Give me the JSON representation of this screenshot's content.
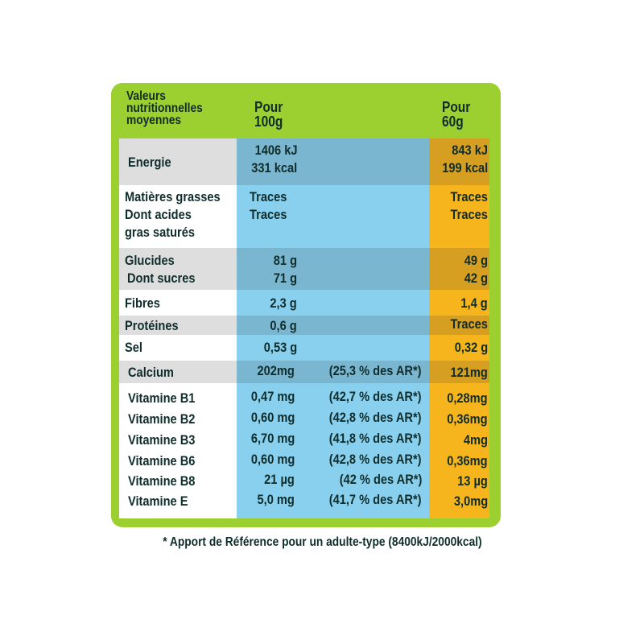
{
  "header": {
    "label_lines": [
      "Valeurs",
      "nutritionnelles",
      "moyennes"
    ],
    "col100_lines": [
      "Pour",
      "100g"
    ],
    "col60_lines": [
      "Pour",
      "60g"
    ]
  },
  "rows": [
    {
      "label": [
        "Energie"
      ],
      "v100": [
        "1406 kJ",
        "331 kcal"
      ],
      "v60": [
        "843 kJ",
        "199 kcal"
      ],
      "pct": ""
    },
    {
      "label": [
        "Matières grasses",
        "Dont acides",
        "gras saturés"
      ],
      "v100": [
        "Traces",
        "Traces"
      ],
      "v60": [
        "Traces",
        "Traces"
      ],
      "pct": ""
    },
    {
      "label": [
        "Glucides",
        "Dont sucres"
      ],
      "v100": [
        "81 g",
        "71 g"
      ],
      "v60": [
        "49 g",
        "42 g"
      ],
      "pct": ""
    },
    {
      "label": [
        "Fibres"
      ],
      "v100": [
        "2,3 g"
      ],
      "v60": [
        "1,4 g"
      ],
      "pct": ""
    },
    {
      "label": [
        "Protéines"
      ],
      "v100": [
        "0,6 g"
      ],
      "v60": [
        "Traces"
      ],
      "pct": ""
    },
    {
      "label": [
        "Sel"
      ],
      "v100": [
        "0,53 g"
      ],
      "v60": [
        "0,32 g"
      ],
      "pct": ""
    },
    {
      "label": [
        "Calcium"
      ],
      "v100": [
        "202mg"
      ],
      "v60": [
        "121mg"
      ],
      "pct": "(25,3 % des AR*)"
    },
    {
      "label": [
        "Vitamine B1"
      ],
      "v100": [
        "0,47 mg"
      ],
      "v60": [
        "0,28mg"
      ],
      "pct": "(42,7 % des AR*)"
    },
    {
      "label": [
        "Vitamine B2"
      ],
      "v100": [
        "0,60 mg"
      ],
      "v60": [
        "0,36mg"
      ],
      "pct": "(42,8 % des AR*)"
    },
    {
      "label": [
        "Vitamine B3"
      ],
      "v100": [
        "6,70 mg"
      ],
      "v60": [
        "4mg"
      ],
      "pct": "(41,8 % des AR*)"
    },
    {
      "label": [
        "Vitamine B6"
      ],
      "v100": [
        "0,60 mg"
      ],
      "v60": [
        "0,36mg"
      ],
      "pct": "(42,8 % des AR*)"
    },
    {
      "label": [
        "Vitamine B8"
      ],
      "v100": [
        "21 µg"
      ],
      "v60": [
        "13 µg"
      ],
      "pct": "(42 % des AR*)"
    },
    {
      "label": [
        "Vitamine E"
      ],
      "v100": [
        "5,0 mg"
      ],
      "v60": [
        "3,0mg"
      ],
      "pct": "(41,7 % des AR*)"
    }
  ],
  "footnote": "* Apport de Référence pour un adulte-type (8400kJ/2000kcal)",
  "colors": {
    "green": "#9bd030",
    "blue": "#89cfee",
    "orange": "#f6b41d",
    "text": "#0f2d2b"
  }
}
